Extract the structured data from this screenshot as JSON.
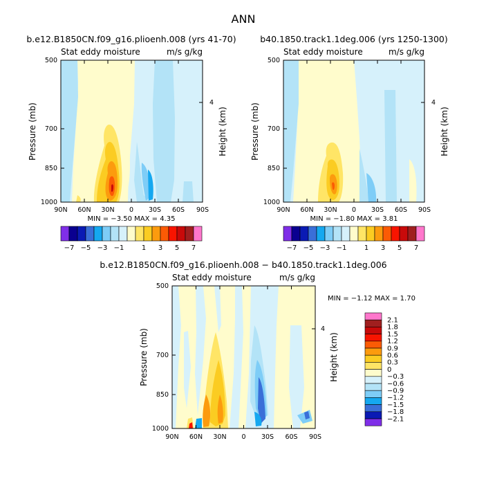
{
  "page_title": "ANN",
  "colors": {
    "scale": [
      "#7f2ee8",
      "#0a0090",
      "#0a1ab4",
      "#3a6fd8",
      "#15a8f0",
      "#7ecdf7",
      "#b3e3f7",
      "#d6f1fb",
      "#fffccc",
      "#ffe566",
      "#fbcc22",
      "#fc9b0e",
      "#fb5b05",
      "#f81400",
      "#c80a0a",
      "#a01f1f",
      "#ff77cc"
    ]
  },
  "chart_data": [
    {
      "type": "heatmap",
      "panel": "top-left",
      "title": "b.e12.B1850CN.f09_g16.plioenh.008 (yrs 41-70)",
      "subtitle_left": "Stat eddy moisture",
      "subtitle_right": "m/s g/kg",
      "ylabel": "Pressure (mb)",
      "ylabel_right": "Height (km)",
      "x_ticks": [
        "90N",
        "60N",
        "30N",
        "0",
        "30S",
        "60S",
        "90S"
      ],
      "x_values": [
        90,
        60,
        30,
        0,
        -30,
        -60,
        -90
      ],
      "y_ticks": [
        "500",
        "700",
        "850",
        "1000"
      ],
      "y_values": [
        500,
        700,
        850,
        1000
      ],
      "y_right_ticks": [
        "4"
      ],
      "y_right_values": [
        4
      ],
      "ylim": [
        500,
        1000
      ],
      "xlim": [
        90,
        -90
      ],
      "stats": "MIN = −3.50   MAX =  4.35",
      "min": -3.5,
      "max": 4.35,
      "colorbar_orientation": "horizontal",
      "colorbar_labels": [
        "−7",
        "−5",
        "−3",
        "−1",
        "1",
        "3",
        "5",
        "7"
      ]
    },
    {
      "type": "heatmap",
      "panel": "top-right",
      "title": "b40.1850.track1.1deg.006 (yrs 1250-1300)",
      "subtitle_left": "Stat eddy moisture",
      "subtitle_right": "m/s g/kg",
      "ylabel": "Pressure (mb)",
      "ylabel_right": "Height (km)",
      "x_ticks": [
        "90N",
        "60N",
        "30N",
        "0",
        "30S",
        "60S",
        "90S"
      ],
      "x_values": [
        90,
        60,
        30,
        0,
        -30,
        -60,
        -90
      ],
      "y_ticks": [
        "500",
        "700",
        "850",
        "1000"
      ],
      "y_values": [
        500,
        700,
        850,
        1000
      ],
      "y_right_ticks": [
        "4"
      ],
      "y_right_values": [
        4
      ],
      "ylim": [
        500,
        1000
      ],
      "xlim": [
        90,
        -90
      ],
      "stats": "MIN = −1.80   MAX =  3.81",
      "min": -1.8,
      "max": 3.81,
      "colorbar_orientation": "horizontal",
      "colorbar_labels": [
        "−7",
        "−5",
        "−3",
        "−1",
        "1",
        "3",
        "5",
        "7"
      ]
    },
    {
      "type": "heatmap",
      "panel": "bottom",
      "title": "b.e12.B1850CN.f09_g16.plioenh.008 − b40.1850.track1.1deg.006",
      "subtitle_left": "Stat eddy moisture",
      "subtitle_right": "m/s g/kg",
      "ylabel": "Pressure (mb)",
      "ylabel_right": "Height (km)",
      "x_ticks": [
        "90N",
        "60N",
        "30N",
        "0",
        "30S",
        "60S",
        "90S"
      ],
      "x_values": [
        90,
        60,
        30,
        0,
        -30,
        -60,
        -90
      ],
      "y_ticks": [
        "500",
        "700",
        "850",
        "1000"
      ],
      "y_values": [
        500,
        700,
        850,
        1000
      ],
      "y_right_ticks": [
        "4"
      ],
      "y_right_values": [
        4
      ],
      "ylim": [
        500,
        1000
      ],
      "xlim": [
        90,
        -90
      ],
      "stats": "MIN =  −1.12   MAX =   1.70",
      "min": -1.12,
      "max": 1.7,
      "colorbar_orientation": "vertical",
      "colorbar_labels": [
        "2.1",
        "1.8",
        "1.5",
        "1.2",
        "0.9",
        "0.6",
        "0.3",
        "0",
        "−0.3",
        "−0.6",
        "−0.9",
        "−1.2",
        "−1.5",
        "−1.8",
        "−2.1"
      ]
    }
  ]
}
